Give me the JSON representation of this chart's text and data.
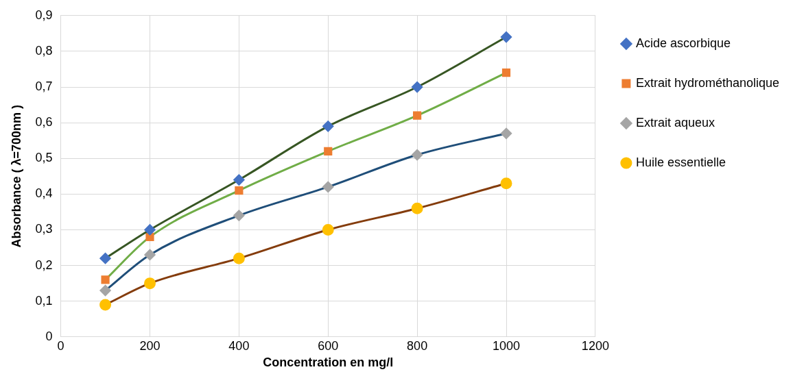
{
  "chart_data": {
    "type": "line",
    "xlabel": "Concentration en mg/l",
    "ylabel": "Absorbance ( λ=700nm )",
    "x": [
      100,
      200,
      400,
      600,
      800,
      1000
    ],
    "series": [
      {
        "name": "Acide ascorbique",
        "color": "#375623",
        "colors": [
          "#4472c4",
          "#4472c4",
          "#4472c4",
          "#4472c4",
          "#4472c4",
          "#4472c4"
        ],
        "marker": "diamond",
        "values": [
          0.22,
          0.3,
          0.44,
          0.59,
          0.7,
          0.84
        ]
      },
      {
        "name": "Extrait hydrométhanolique",
        "color": "#70ad47",
        "colors": [
          "#ed7d31",
          "#ed7d31",
          "#ed7d31",
          "#ed7d31",
          "#ed7d31",
          "#ed7d31"
        ],
        "marker": "square",
        "values": [
          0.16,
          0.28,
          0.41,
          0.52,
          0.62,
          0.74
        ]
      },
      {
        "name": "Extrait aqueux",
        "color": "#1f4e79",
        "colors": [
          "#a5a5a5",
          "#a5a5a5",
          "#a5a5a5",
          "#a5a5a5",
          "#a5a5a5",
          "#a5a5a5"
        ],
        "marker": "diamond",
        "values": [
          0.13,
          0.23,
          0.34,
          0.42,
          0.51,
          0.57
        ]
      },
      {
        "name": "Huile essentielle",
        "color": "#843c0c",
        "colors": [
          "#ffc000",
          "#ffc000",
          "#ffc000",
          "#ffc000",
          "#ffc000",
          "#ffc000"
        ],
        "marker": "circle",
        "values": [
          0.09,
          0.15,
          0.22,
          0.3,
          0.36,
          0.43
        ]
      }
    ],
    "xlim": [
      0,
      1200
    ],
    "xticks": [
      0,
      200,
      400,
      600,
      800,
      1000,
      1200
    ],
    "ylim": [
      0,
      0.9
    ],
    "yticks": [
      0,
      {
        "value": 0.1,
        "label": "0,1"
      },
      {
        "value": 0.2,
        "label": "0,2"
      },
      {
        "value": 0.3,
        "label": "0,3"
      },
      {
        "value": 0.4,
        "label": "0,4"
      },
      {
        "value": 0.5,
        "label": "0,5"
      },
      {
        "value": 0.6,
        "label": "0,6"
      },
      {
        "value": 0.7,
        "label": "0,7"
      },
      {
        "value": 0.8,
        "label": "0,8"
      },
      {
        "value": 0.9,
        "label": "0,9"
      }
    ],
    "grid": true,
    "legend": "right",
    "line_style": "solid"
  }
}
